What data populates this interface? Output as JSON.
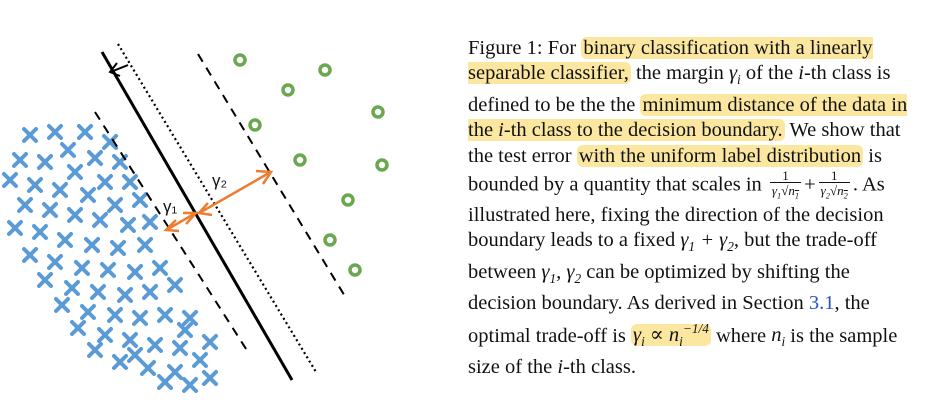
{
  "figure": {
    "margin_labels": [
      "γ₁",
      "γ₂"
    ],
    "colors": {
      "class_x": "#5b9bd5",
      "class_o": "#6aa84f",
      "margin_arrow": "#ed7d31",
      "boundary": "#000000",
      "highlight": "#fbe7a0",
      "link": "#2a52be"
    },
    "icons": [
      "x-mark-icon",
      "circle-mark-icon",
      "rotation-arrow-icon"
    ]
  },
  "caption": {
    "label": "Figure 1:",
    "t1": "For",
    "h1": "binary classification with a linearly separable classifier,",
    "t2": "the margin",
    "t3": "of the",
    "t4": "-th class is defined to be the the",
    "h2": "minimum distance of the data in the",
    "h2b": "-th class to the decision boundary.",
    "t5": "We show that the test error",
    "h3": "with the uniform label distribution",
    "t6": "is bounded by a quantity that scales in",
    "t7": ". As illustrated here, fixing the direction of the decision boundary leads to a fixed",
    "t8": ", but the trade-off between",
    "t9": "can be optimized by shifting the decision boundary. As derived in Section",
    "section_ref": "3.1",
    "t10": ", the optimal trade-off is",
    "t11": "where",
    "t12": "is the sample size of the",
    "t13": "-th class."
  }
}
